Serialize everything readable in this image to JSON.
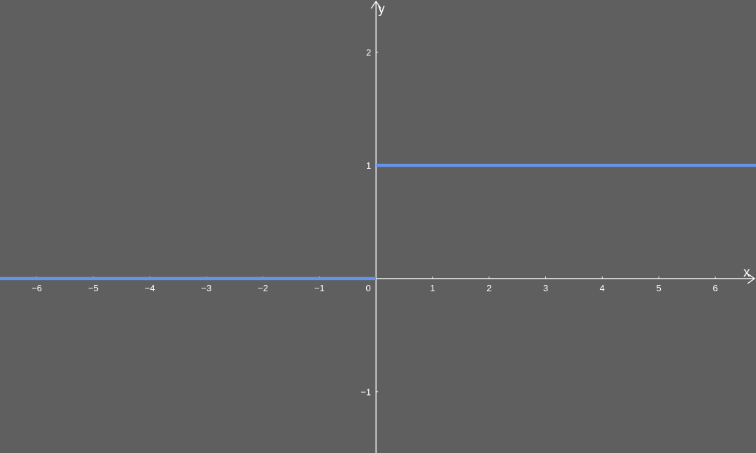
{
  "chart_data": {
    "type": "line",
    "title": "",
    "xlabel": "x",
    "ylabel": "y",
    "xlim": [
      -6.65,
      6.72
    ],
    "ylim": [
      -1.54,
      2.46
    ],
    "grid": false,
    "x_ticks": [
      -6,
      -5,
      -4,
      -3,
      -2,
      -1,
      0,
      1,
      2,
      3,
      4,
      5,
      6
    ],
    "x_tick_labels": [
      "−6",
      "−5",
      "−4",
      "−3",
      "−2",
      "−1",
      "0",
      "1",
      "2",
      "3",
      "4",
      "5",
      "6"
    ],
    "y_ticks": [
      -1,
      1,
      2
    ],
    "y_tick_labels": [
      "−1",
      "1",
      "2"
    ],
    "series": [
      {
        "color": "#6495ed",
        "segments": [
          {
            "x": [
              -6.65,
              0
            ],
            "y": [
              0,
              0
            ]
          },
          {
            "x": [
              0,
              6.72
            ],
            "y": [
              1,
              1
            ]
          }
        ]
      }
    ],
    "colors": {
      "background": "#5f5f5f",
      "axes": "#ffffff",
      "series": "#6495ed"
    }
  }
}
